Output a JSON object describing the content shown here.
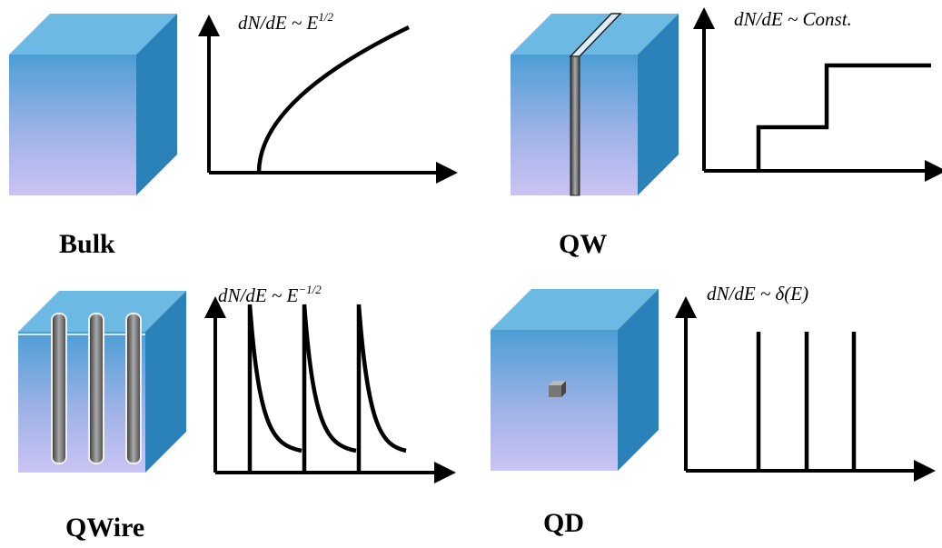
{
  "panels": [
    {
      "label": "Bulk",
      "formula": "dN/dE ~ E",
      "exponent": "1/2"
    },
    {
      "label": "QW",
      "formula": "dN/dE ~ Const."
    },
    {
      "label": "QWire",
      "formula": "dN/dE ~ E",
      "exponent": "−1/2"
    },
    {
      "label": "QD",
      "formula": "dN/dE ~ δ(E)"
    }
  ]
}
